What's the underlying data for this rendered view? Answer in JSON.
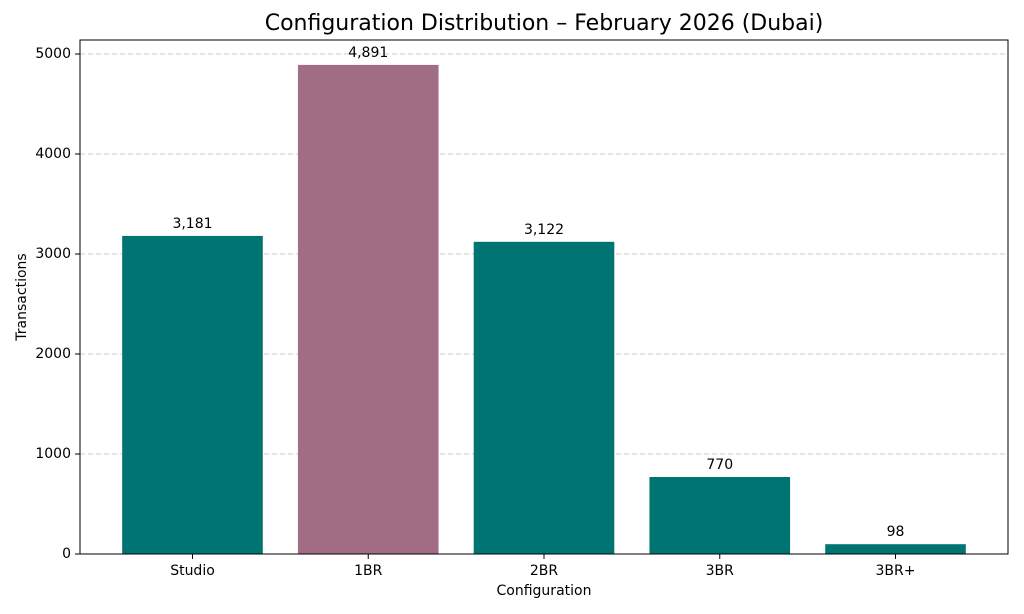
{
  "chart_data": {
    "type": "bar",
    "title": "Configuration Distribution – February 2026 (Dubai)",
    "x_label": "Configuration",
    "y_label": "Transactions",
    "categories": [
      "Studio",
      "1BR",
      "2BR",
      "3BR",
      "3BR+"
    ],
    "values": [
      3181,
      4891,
      3122,
      770,
      98
    ],
    "value_labels": [
      "3,181",
      "4,891",
      "3,122",
      "770",
      "98"
    ],
    "colors": [
      "#007472",
      "#a06d85",
      "#007472",
      "#007472",
      "#007472"
    ],
    "ylim": [
      0,
      5140
    ],
    "yticks": [
      0,
      1000,
      2000,
      3000,
      4000,
      5000
    ],
    "grid": true
  }
}
